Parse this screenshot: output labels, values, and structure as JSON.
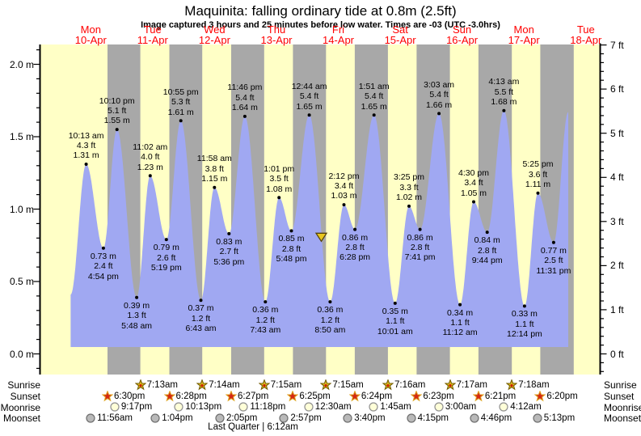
{
  "header": {
    "title": "Maquinita: falling ordinary tide at 0.8m (2.5ft)",
    "subtitle": "Image captured 3 hours and 25 minutes before low water. Times are -03 (UTC -3.0hrs)"
  },
  "colors": {
    "day_bg": "#ffffc6",
    "night_bg": "#a8a8a8",
    "water": "#a0a8f2",
    "day_label": "#ff0000",
    "axis": "#000000",
    "text": "#000000",
    "marker_fill": "#e8c61e",
    "marker_edge": "#55430a",
    "sunrise_star_fill": "#d6b51c",
    "sunrise_star_edge": "#6f5a00",
    "sunrise_star_center": "#cc2200",
    "sunset_star_fill": "#d42814",
    "sunset_star_edge": "#dfa520",
    "moonrise_fill": "#ffffd8",
    "moonrise_edge": "#909090",
    "moonset_fill": "#b9b9b9",
    "moonset_edge": "#6e6e6e"
  },
  "chart_data": {
    "type": "area",
    "title": "Maquinita: falling ordinary tide at 0.8m (2.5ft)",
    "subtitle": "Image captured 3 hours and 25 minutes before low water. Times are -03 (UTC -3.0hrs)",
    "unit_left": "m",
    "unit_right": "ft",
    "ylim_m": [
      -0.14,
      2.14
    ],
    "grid": false,
    "y_left_ticks": [
      {
        "label": "2.0 m",
        "value": 2.0
      },
      {
        "label": "1.5 m",
        "value": 1.5
      },
      {
        "label": "1.0 m",
        "value": 1.0
      },
      {
        "label": "0.5 m",
        "value": 0.5
      },
      {
        "label": "0.0 m",
        "value": 0.0
      }
    ],
    "y_right_ticks": [
      {
        "label": "7 ft",
        "value": 7
      },
      {
        "label": "6 ft",
        "value": 6
      },
      {
        "label": "5 ft",
        "value": 5
      },
      {
        "label": "4 ft",
        "value": 4
      },
      {
        "label": "3 ft",
        "value": 3
      },
      {
        "label": "2 ft",
        "value": 2
      },
      {
        "label": "1 ft",
        "value": 1
      },
      {
        "label": "0 ft",
        "value": 0
      }
    ],
    "days": [
      {
        "dow": "Mon",
        "date": "10-Apr"
      },
      {
        "dow": "Tue",
        "date": "11-Apr"
      },
      {
        "dow": "Wed",
        "date": "12-Apr"
      },
      {
        "dow": "Thu",
        "date": "13-Apr"
      },
      {
        "dow": "Fri",
        "date": "14-Apr"
      },
      {
        "dow": "Sat",
        "date": "15-Apr"
      },
      {
        "dow": "Sun",
        "date": "16-Apr"
      },
      {
        "dow": "Mon",
        "date": "17-Apr"
      },
      {
        "dow": "Tue",
        "date": "18-Apr"
      }
    ],
    "tide_events": [
      {
        "day": 0,
        "time": "4:12 am",
        "height_m": 0.41,
        "type": "start"
      },
      {
        "day": 0,
        "time": "10:13 am",
        "height_m": 1.31,
        "height_ft": 4.3,
        "type": "high",
        "label_lines": [
          "10:13 am",
          "4.3 ft",
          "1.31 m"
        ]
      },
      {
        "day": 0,
        "time": "4:54 pm",
        "height_m": 0.73,
        "height_ft": 2.4,
        "type": "low",
        "label_lines": [
          "0.73 m",
          "2.4 ft",
          "4:54 pm"
        ]
      },
      {
        "day": 0,
        "time": "10:10 pm",
        "height_m": 1.55,
        "height_ft": 5.1,
        "type": "high",
        "label_lines": [
          "10:10 pm",
          "5.1 ft",
          "1.55 m"
        ]
      },
      {
        "day": 1,
        "time": "5:48 am",
        "height_m": 0.39,
        "height_ft": 1.3,
        "type": "low",
        "label_lines": [
          "0.39 m",
          "1.3 ft",
          "5:48 am"
        ]
      },
      {
        "day": 1,
        "time": "11:02 am",
        "height_m": 1.23,
        "height_ft": 4.0,
        "type": "high",
        "label_lines": [
          "11:02 am",
          "4.0 ft",
          "1.23 m"
        ]
      },
      {
        "day": 1,
        "time": "5:19 pm",
        "height_m": 0.79,
        "height_ft": 2.6,
        "type": "low",
        "label_lines": [
          "0.79 m",
          "2.6 ft",
          "5:19 pm"
        ]
      },
      {
        "day": 1,
        "time": "10:55 pm",
        "height_m": 1.61,
        "height_ft": 5.3,
        "type": "high",
        "label_lines": [
          "10:55 pm",
          "5.3 ft",
          "1.61 m"
        ]
      },
      {
        "day": 2,
        "time": "6:43 am",
        "height_m": 0.37,
        "height_ft": 1.2,
        "type": "low",
        "label_lines": [
          "0.37 m",
          "1.2 ft",
          "6:43 am"
        ]
      },
      {
        "day": 2,
        "time": "11:58 am",
        "height_m": 1.15,
        "height_ft": 3.8,
        "type": "high",
        "label_lines": [
          "11:58 am",
          "3.8 ft",
          "1.15 m"
        ]
      },
      {
        "day": 2,
        "time": "5:36 pm",
        "height_m": 0.83,
        "height_ft": 2.7,
        "type": "low",
        "label_lines": [
          "0.83 m",
          "2.7 ft",
          "5:36 pm"
        ]
      },
      {
        "day": 2,
        "time": "11:46 pm",
        "height_m": 1.64,
        "height_ft": 5.4,
        "type": "high",
        "label_lines": [
          "11:46 pm",
          "5.4 ft",
          "1.64 m"
        ]
      },
      {
        "day": 3,
        "time": "7:43 am",
        "height_m": 0.36,
        "height_ft": 1.2,
        "type": "low",
        "label_lines": [
          "0.36 m",
          "1.2 ft",
          "7:43 am"
        ]
      },
      {
        "day": 3,
        "time": "1:01 pm",
        "height_m": 1.08,
        "height_ft": 3.5,
        "type": "high",
        "label_lines": [
          "1:01 pm",
          "3.5 ft",
          "1.08 m"
        ]
      },
      {
        "day": 3,
        "time": "5:48 pm",
        "height_m": 0.85,
        "height_ft": 2.8,
        "type": "low",
        "label_lines": [
          "0.85 m",
          "2.8 ft",
          "5:48 pm"
        ]
      },
      {
        "day": 4,
        "time": "12:44 am",
        "height_m": 1.65,
        "height_ft": 5.4,
        "type": "high",
        "label_lines": [
          "12:44 am",
          "5.4 ft",
          "1.65 m"
        ]
      },
      {
        "day": 4,
        "time": "8:50 am",
        "height_m": 0.36,
        "height_ft": 1.2,
        "type": "low",
        "label_lines": [
          "0.36 m",
          "1.2 ft",
          "8:50 am"
        ]
      },
      {
        "day": 4,
        "time": "2:12 pm",
        "height_m": 1.03,
        "height_ft": 3.4,
        "type": "high",
        "label_lines": [
          "2:12 pm",
          "3.4 ft",
          "1.03 m"
        ]
      },
      {
        "day": 4,
        "time": "6:28 pm",
        "height_m": 0.86,
        "height_ft": 2.8,
        "type": "low",
        "label_lines": [
          "0.86 m",
          "2.8 ft",
          "6:28 pm"
        ]
      },
      {
        "day": 5,
        "time": "1:51 am",
        "height_m": 1.65,
        "height_ft": 5.4,
        "type": "high",
        "label_lines": [
          "1:51 am",
          "5.4 ft",
          "1.65 m"
        ]
      },
      {
        "day": 5,
        "time": "10:01 am",
        "height_m": 0.35,
        "height_ft": 1.1,
        "type": "low",
        "label_lines": [
          "0.35 m",
          "1.1 ft",
          "10:01 am"
        ]
      },
      {
        "day": 5,
        "time": "3:25 pm",
        "height_m": 1.02,
        "height_ft": 3.3,
        "type": "high",
        "label_lines": [
          "3:25 pm",
          "3.3 ft",
          "1.02 m"
        ]
      },
      {
        "day": 5,
        "time": "7:41 pm",
        "height_m": 0.86,
        "height_ft": 2.8,
        "type": "low",
        "label_lines": [
          "0.86 m",
          "2.8 ft",
          "7:41 pm"
        ]
      },
      {
        "day": 6,
        "time": "3:03 am",
        "height_m": 1.66,
        "height_ft": 5.4,
        "type": "high",
        "label_lines": [
          "3:03 am",
          "5.4 ft",
          "1.66 m"
        ]
      },
      {
        "day": 6,
        "time": "11:12 am",
        "height_m": 0.34,
        "height_ft": 1.1,
        "type": "low",
        "label_lines": [
          "0.34 m",
          "1.1 ft",
          "11:12 am"
        ]
      },
      {
        "day": 6,
        "time": "4:30 pm",
        "height_m": 1.05,
        "height_ft": 3.4,
        "type": "high",
        "label_lines": [
          "4:30 pm",
          "3.4 ft",
          "1.05 m"
        ]
      },
      {
        "day": 6,
        "time": "9:44 pm",
        "height_m": 0.84,
        "height_ft": 2.8,
        "type": "low",
        "label_lines": [
          "0.84 m",
          "2.8 ft",
          "9:44 pm"
        ]
      },
      {
        "day": 7,
        "time": "4:13 am",
        "height_m": 1.68,
        "height_ft": 5.5,
        "type": "high",
        "label_lines": [
          "4:13 am",
          "5.5 ft",
          "1.68 m"
        ]
      },
      {
        "day": 7,
        "time": "12:14 pm",
        "height_m": 0.33,
        "height_ft": 1.1,
        "type": "low",
        "label_lines": [
          "0.33 m",
          "1.1 ft",
          "12:14 pm"
        ]
      },
      {
        "day": 7,
        "time": "5:25 pm",
        "height_m": 1.11,
        "height_ft": 3.6,
        "type": "high",
        "label_lines": [
          "5:25 pm",
          "3.6 ft",
          "1.11 m"
        ]
      },
      {
        "day": 7,
        "time": "11:31 pm",
        "height_m": 0.77,
        "height_ft": 2.5,
        "type": "low",
        "label_lines": [
          "0.77 m",
          "2.5 ft",
          "11:31 pm"
        ]
      },
      {
        "day": 8,
        "time": "5:10 am",
        "height_m": 1.67,
        "type": "end"
      }
    ],
    "now_marker": {
      "day": 4,
      "time": "5:25 am",
      "height_m": 0.8,
      "shape": "down-triangle"
    },
    "sun_moon": {
      "rows": [
        {
          "key": "sunrise",
          "label": "Sunrise"
        },
        {
          "key": "sunset",
          "label": "Sunset"
        },
        {
          "key": "moonrise",
          "label": "Moonrise"
        },
        {
          "key": "moonset",
          "label": "Moonset"
        }
      ],
      "sunrise": [
        {
          "day": 1,
          "time": "7:13am"
        },
        {
          "day": 2,
          "time": "7:14am"
        },
        {
          "day": 3,
          "time": "7:15am"
        },
        {
          "day": 4,
          "time": "7:15am"
        },
        {
          "day": 5,
          "time": "7:16am"
        },
        {
          "day": 6,
          "time": "7:17am"
        },
        {
          "day": 7,
          "time": "7:18am"
        }
      ],
      "sunset": [
        {
          "day": 0,
          "time": "6:30pm"
        },
        {
          "day": 1,
          "time": "6:28pm"
        },
        {
          "day": 2,
          "time": "6:27pm"
        },
        {
          "day": 3,
          "time": "6:25pm"
        },
        {
          "day": 4,
          "time": "6:24pm"
        },
        {
          "day": 5,
          "time": "6:23pm"
        },
        {
          "day": 6,
          "time": "6:21pm"
        },
        {
          "day": 7,
          "time": "6:20pm"
        }
      ],
      "moonrise": [
        {
          "day": 0,
          "time": "9:17pm"
        },
        {
          "day": 1,
          "time": "10:13pm"
        },
        {
          "day": 2,
          "time": "11:18pm"
        },
        {
          "day": 4,
          "time": "12:30am"
        },
        {
          "day": 5,
          "time": "1:45am"
        },
        {
          "day": 6,
          "time": "3:00am"
        },
        {
          "day": 7,
          "time": "4:12am"
        }
      ],
      "moonset": [
        {
          "day": 0,
          "time": "11:56am"
        },
        {
          "day": 1,
          "time": "1:04pm"
        },
        {
          "day": 2,
          "time": "2:05pm"
        },
        {
          "day": 3,
          "time": "2:57pm"
        },
        {
          "day": 4,
          "time": "3:40pm"
        },
        {
          "day": 5,
          "time": "4:15pm"
        },
        {
          "day": 6,
          "time": "4:46pm"
        },
        {
          "day": 7,
          "time": "5:13pm"
        }
      ]
    },
    "moon_phase_note": "Last Quarter | 6:12am"
  }
}
